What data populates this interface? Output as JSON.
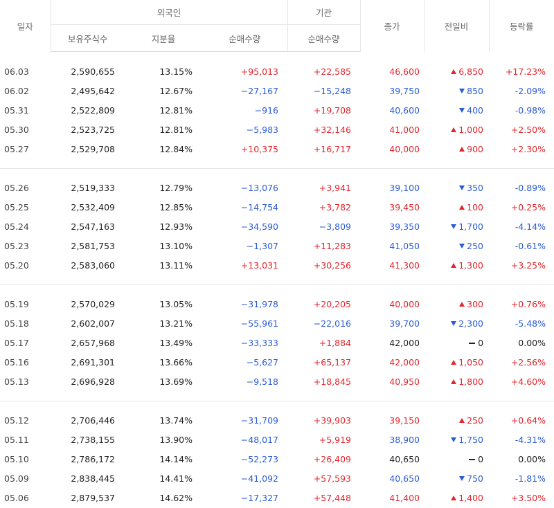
{
  "header": {
    "date": "일자",
    "foreign_group": "외국인",
    "inst_group": "기관",
    "close": "종가",
    "diff": "전일비",
    "rate": "등락률",
    "holdings": "보유주식수",
    "ratio": "지분율",
    "foreign_net": "순매수량",
    "inst_net": "순매수량"
  },
  "groups": [
    [
      {
        "date": "06.03",
        "hold": "2,590,655",
        "ratio": "13.15%",
        "fnet": "+95,013",
        "fdir": "up",
        "inet": "+22,585",
        "idir": "up",
        "close": "46,600",
        "cdir": "up",
        "diff": "6,850",
        "ddir": "up",
        "rate": "+17.23%",
        "rdir": "up"
      },
      {
        "date": "06.02",
        "hold": "2,495,642",
        "ratio": "12.67%",
        "fnet": "−27,167",
        "fdir": "down",
        "inet": "−15,248",
        "idir": "down",
        "close": "39,750",
        "cdir": "down",
        "diff": "850",
        "ddir": "down",
        "rate": "-2.09%",
        "rdir": "down"
      },
      {
        "date": "05.31",
        "hold": "2,522,809",
        "ratio": "12.81%",
        "fnet": "−916",
        "fdir": "down",
        "inet": "+19,708",
        "idir": "up",
        "close": "40,600",
        "cdir": "down",
        "diff": "400",
        "ddir": "down",
        "rate": "-0.98%",
        "rdir": "down"
      },
      {
        "date": "05.30",
        "hold": "2,523,725",
        "ratio": "12.81%",
        "fnet": "−5,983",
        "fdir": "down",
        "inet": "+32,146",
        "idir": "up",
        "close": "41,000",
        "cdir": "up",
        "diff": "1,000",
        "ddir": "up",
        "rate": "+2.50%",
        "rdir": "up"
      },
      {
        "date": "05.27",
        "hold": "2,529,708",
        "ratio": "12.84%",
        "fnet": "+10,375",
        "fdir": "up",
        "inet": "+16,717",
        "idir": "up",
        "close": "40,000",
        "cdir": "up",
        "diff": "900",
        "ddir": "up",
        "rate": "+2.30%",
        "rdir": "up"
      }
    ],
    [
      {
        "date": "05.26",
        "hold": "2,519,333",
        "ratio": "12.79%",
        "fnet": "−13,076",
        "fdir": "down",
        "inet": "+3,941",
        "idir": "up",
        "close": "39,100",
        "cdir": "down",
        "diff": "350",
        "ddir": "down",
        "rate": "-0.89%",
        "rdir": "down"
      },
      {
        "date": "05.25",
        "hold": "2,532,409",
        "ratio": "12.85%",
        "fnet": "−14,754",
        "fdir": "down",
        "inet": "+3,782",
        "idir": "up",
        "close": "39,450",
        "cdir": "up",
        "diff": "100",
        "ddir": "up",
        "rate": "+0.25%",
        "rdir": "up"
      },
      {
        "date": "05.24",
        "hold": "2,547,163",
        "ratio": "12.93%",
        "fnet": "−34,590",
        "fdir": "down",
        "inet": "−3,809",
        "idir": "down",
        "close": "39,350",
        "cdir": "down",
        "diff": "1,700",
        "ddir": "down",
        "rate": "-4.14%",
        "rdir": "down"
      },
      {
        "date": "05.23",
        "hold": "2,581,753",
        "ratio": "13.10%",
        "fnet": "−1,307",
        "fdir": "down",
        "inet": "+11,283",
        "idir": "up",
        "close": "41,050",
        "cdir": "down",
        "diff": "250",
        "ddir": "down",
        "rate": "-0.61%",
        "rdir": "down"
      },
      {
        "date": "05.20",
        "hold": "2,583,060",
        "ratio": "13.11%",
        "fnet": "+13,031",
        "fdir": "up",
        "inet": "+30,256",
        "idir": "up",
        "close": "41,300",
        "cdir": "up",
        "diff": "1,300",
        "ddir": "up",
        "rate": "+3.25%",
        "rdir": "up"
      }
    ],
    [
      {
        "date": "05.19",
        "hold": "2,570,029",
        "ratio": "13.05%",
        "fnet": "−31,978",
        "fdir": "down",
        "inet": "+20,205",
        "idir": "up",
        "close": "40,000",
        "cdir": "up",
        "diff": "300",
        "ddir": "up",
        "rate": "+0.76%",
        "rdir": "up"
      },
      {
        "date": "05.18",
        "hold": "2,602,007",
        "ratio": "13.21%",
        "fnet": "−55,961",
        "fdir": "down",
        "inet": "−22,016",
        "idir": "down",
        "close": "39,700",
        "cdir": "down",
        "diff": "2,300",
        "ddir": "down",
        "rate": "-5.48%",
        "rdir": "down"
      },
      {
        "date": "05.17",
        "hold": "2,657,968",
        "ratio": "13.49%",
        "fnet": "−33,333",
        "fdir": "down",
        "inet": "+1,884",
        "idir": "up",
        "close": "42,000",
        "cdir": "flat",
        "diff": "0",
        "ddir": "flat",
        "rate": "0.00%",
        "rdir": "flat"
      },
      {
        "date": "05.16",
        "hold": "2,691,301",
        "ratio": "13.66%",
        "fnet": "−5,627",
        "fdir": "down",
        "inet": "+65,137",
        "idir": "up",
        "close": "42,000",
        "cdir": "up",
        "diff": "1,050",
        "ddir": "up",
        "rate": "+2.56%",
        "rdir": "up"
      },
      {
        "date": "05.13",
        "hold": "2,696,928",
        "ratio": "13.69%",
        "fnet": "−9,518",
        "fdir": "down",
        "inet": "+18,845",
        "idir": "up",
        "close": "40,950",
        "cdir": "up",
        "diff": "1,800",
        "ddir": "up",
        "rate": "+4.60%",
        "rdir": "up"
      }
    ],
    [
      {
        "date": "05.12",
        "hold": "2,706,446",
        "ratio": "13.74%",
        "fnet": "−31,709",
        "fdir": "down",
        "inet": "+39,903",
        "idir": "up",
        "close": "39,150",
        "cdir": "up",
        "diff": "250",
        "ddir": "up",
        "rate": "+0.64%",
        "rdir": "up"
      },
      {
        "date": "05.11",
        "hold": "2,738,155",
        "ratio": "13.90%",
        "fnet": "−48,017",
        "fdir": "down",
        "inet": "+5,919",
        "idir": "up",
        "close": "38,900",
        "cdir": "down",
        "diff": "1,750",
        "ddir": "down",
        "rate": "-4.31%",
        "rdir": "down"
      },
      {
        "date": "05.10",
        "hold": "2,786,172",
        "ratio": "14.14%",
        "fnet": "−52,273",
        "fdir": "down",
        "inet": "+26,409",
        "idir": "up",
        "close": "40,650",
        "cdir": "flat",
        "diff": "0",
        "ddir": "flat",
        "rate": "0.00%",
        "rdir": "flat"
      },
      {
        "date": "05.09",
        "hold": "2,838,445",
        "ratio": "14.41%",
        "fnet": "−41,092",
        "fdir": "down",
        "inet": "+57,593",
        "idir": "up",
        "close": "40,650",
        "cdir": "down",
        "diff": "750",
        "ddir": "down",
        "rate": "-1.81%",
        "rdir": "down"
      },
      {
        "date": "05.06",
        "hold": "2,879,537",
        "ratio": "14.62%",
        "fnet": "−17,327",
        "fdir": "down",
        "inet": "+57,448",
        "idir": "up",
        "close": "41,400",
        "cdir": "up",
        "diff": "1,400",
        "ddir": "up",
        "rate": "+3.50%",
        "rdir": "up"
      }
    ]
  ],
  "colors": {
    "up": "#e4252c",
    "down": "#2a5bd7",
    "flat": "#222222"
  },
  "icons": {
    "up": "triangle-up-icon",
    "down": "triangle-down-icon",
    "flat": "dash-icon"
  }
}
